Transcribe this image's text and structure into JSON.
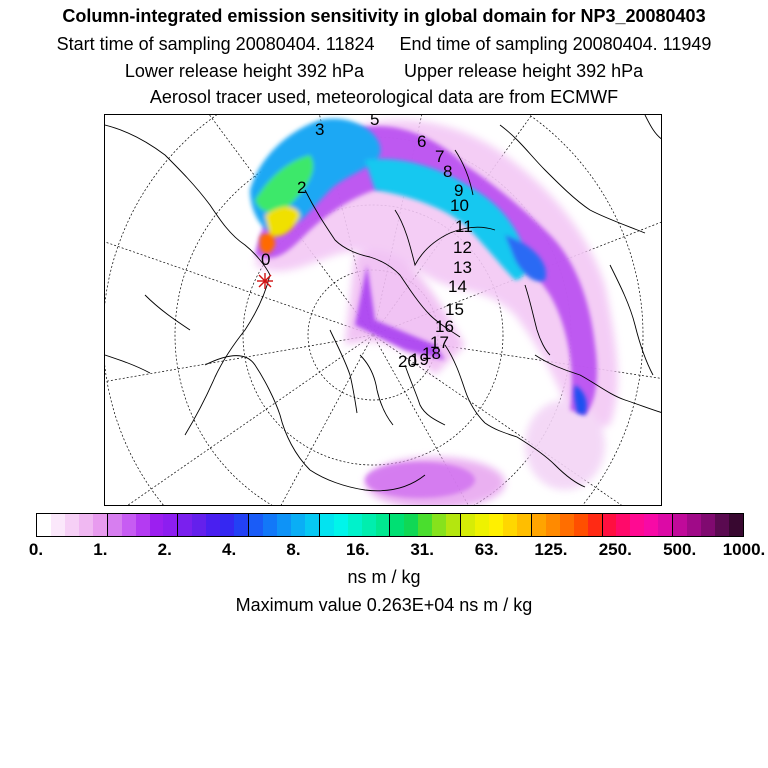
{
  "header": {
    "title": "Column-integrated emission sensitivity in global domain for NP3_20080403",
    "start_time": "Start time of sampling 20080404. 11824",
    "end_time": "End time of sampling 20080404. 11949",
    "lower_height": "Lower release height  392 hPa",
    "upper_height": "Upper release height  392 hPa",
    "tracer_info": "Aerosol tracer used, meteorological data are from ECMWF"
  },
  "map": {
    "day_labels": [
      "3",
      "5",
      "6",
      "7",
      "8",
      "9",
      "10",
      "11",
      "12",
      "13",
      "14",
      "15",
      "16",
      "2",
      "0",
      "17",
      "18",
      "19",
      "20"
    ],
    "release_marker": "star"
  },
  "colorbar": {
    "tick_labels": [
      "0.",
      "1.",
      "2.",
      "4.",
      "8.",
      "16.",
      "31.",
      "63.",
      "125.",
      "250.",
      "500.",
      "1000."
    ],
    "colors": [
      "#ffffff",
      "#fbe8fb",
      "#f6d0f6",
      "#f0b8f2",
      "#e89bef",
      "#d77ef0",
      "#c75cf3",
      "#b43bf2",
      "#9c1ff0",
      "#8d1ef0",
      "#7a20ee",
      "#6420ec",
      "#4a1ff0",
      "#3528f2",
      "#2341f5",
      "#1a5cf7",
      "#1278f8",
      "#0e93f7",
      "#0aaef5",
      "#06c8f3",
      "#03e3f0",
      "#00f5ea",
      "#00f2cb",
      "#00eeae",
      "#00e890",
      "#00e073",
      "#10d855",
      "#4ade2e",
      "#86e21c",
      "#b4e60f",
      "#d6ec06",
      "#eef200",
      "#fff000",
      "#ffd700",
      "#ffbe00",
      "#ffa400",
      "#ff8a00",
      "#ff6e00",
      "#ff4f00",
      "#ff2a14",
      "#ff0f40",
      "#ff0a6a",
      "#ff0a92",
      "#f70aa6",
      "#dc0aa6",
      "#c00a9a",
      "#a00a88",
      "#800a70",
      "#5a0a50",
      "#380830"
    ],
    "unit": "ns m / kg"
  },
  "max_value": "Maximum value  0.263E+04 ns m / kg"
}
